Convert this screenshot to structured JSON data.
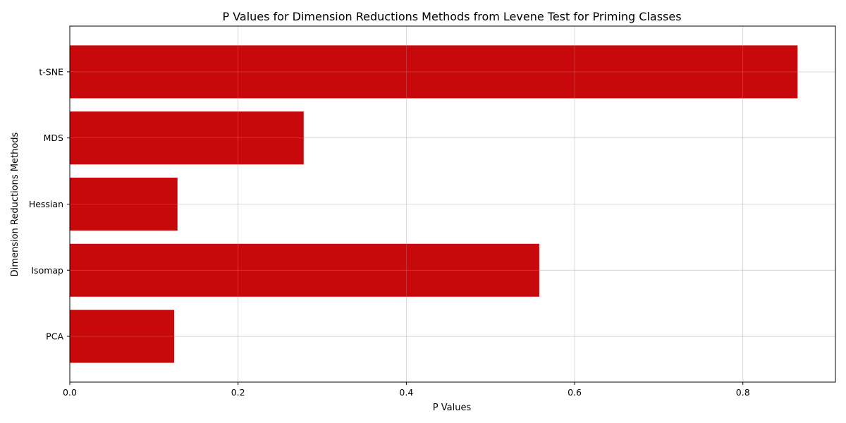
{
  "chart_data": {
    "type": "bar",
    "orientation": "horizontal",
    "title": "P Values for Dimension Reductions Methods from Levene Test for Priming Classes",
    "xlabel": "P Values",
    "ylabel": "Dimension Reductions Methods",
    "categories": [
      "PCA",
      "Isomap",
      "Hessian",
      "MDS",
      "t-SNE"
    ],
    "values": [
      0.124,
      0.558,
      0.128,
      0.278,
      0.865
    ],
    "xlim": [
      0,
      0.91
    ],
    "xticks": [
      0.0,
      0.2,
      0.4,
      0.6,
      0.8
    ],
    "xtick_labels": [
      "0.0",
      "0.2",
      "0.4",
      "0.6",
      "0.8"
    ],
    "grid": true,
    "bar_color": "#c8090b"
  }
}
